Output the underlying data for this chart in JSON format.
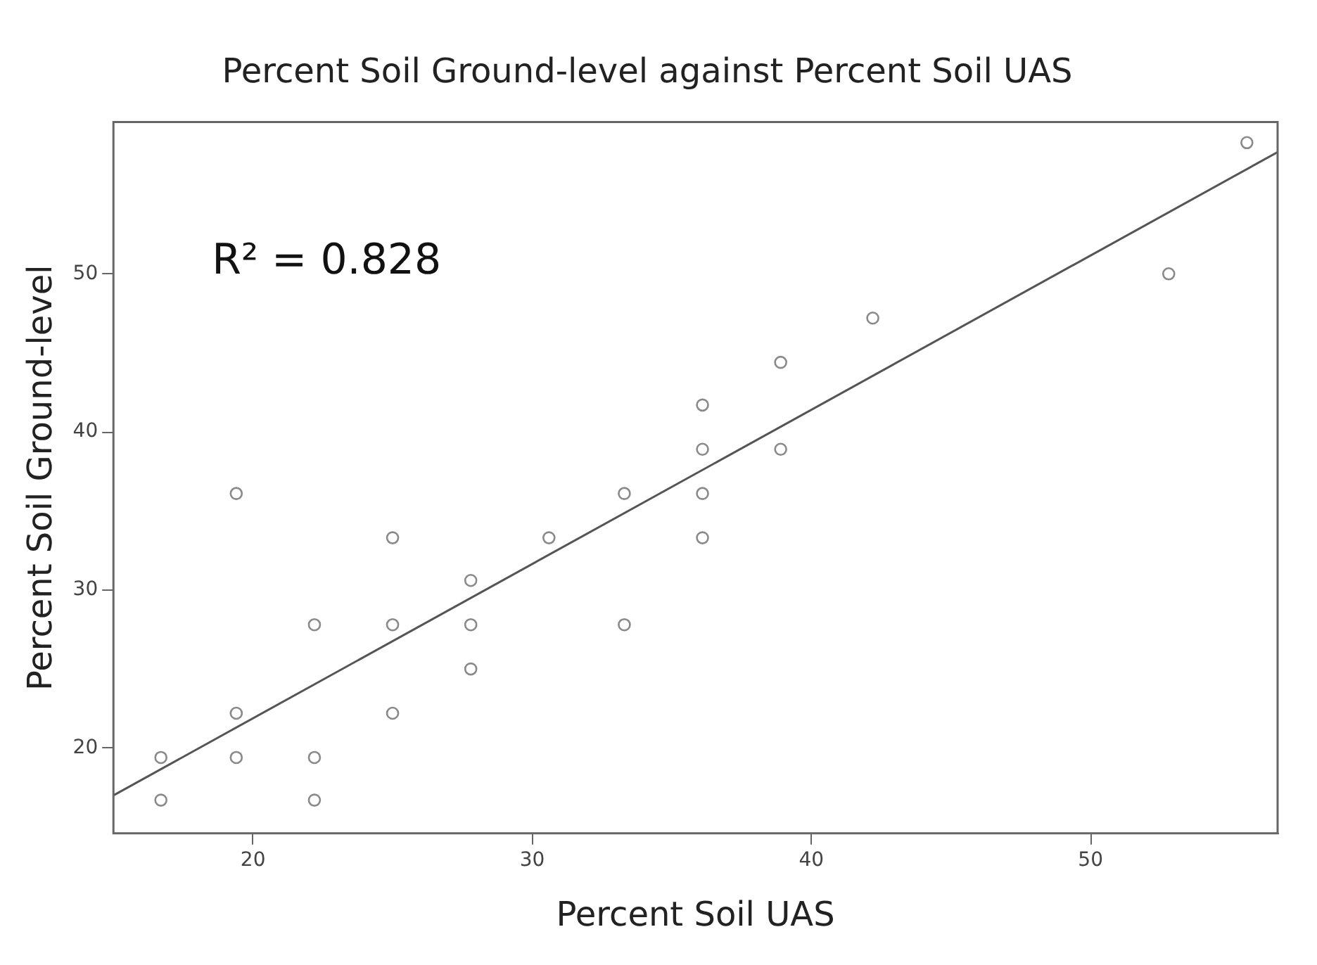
{
  "chart_data": {
    "type": "scatter",
    "title": "Percent Soil Ground-level against Percent Soil UAS",
    "xlabel": "Percent Soil UAS",
    "ylabel": "Percent Soil Ground-level",
    "annotations": [
      "R² = 0.828"
    ],
    "xlim": [
      15,
      56.7
    ],
    "xticks": [
      20,
      30,
      40,
      50
    ],
    "ylim": [
      14.6,
      59.6
    ],
    "yticks": [
      20,
      30,
      40,
      50
    ],
    "grid": false,
    "legend": false,
    "marker": "circle",
    "series": [
      {
        "color": "#8a8a8a",
        "x": [
          16.7,
          16.7,
          19.4,
          19.4,
          19.4,
          22.2,
          22.2,
          22.2,
          25,
          25,
          25,
          27.8,
          27.8,
          27.8,
          30.6,
          33.3,
          33.3,
          36.1,
          36.1,
          36.1,
          36.1,
          38.9,
          38.9,
          42.2,
          52.8,
          55.6
        ],
        "values": [
          19.4,
          16.7,
          36.1,
          22.2,
          19.4,
          27.8,
          19.4,
          16.7,
          33.3,
          27.8,
          22.2,
          30.6,
          27.8,
          25,
          33.3,
          36.1,
          27.8,
          41.7,
          38.9,
          36.1,
          33.3,
          44.4,
          38.9,
          47.2,
          50,
          58.3
        ]
      },
      {
        "type": "line",
        "color": "#555555",
        "marker": "none",
        "x": [
          15,
          56.7
        ],
        "values": [
          17.0,
          57.7
        ]
      }
    ]
  }
}
